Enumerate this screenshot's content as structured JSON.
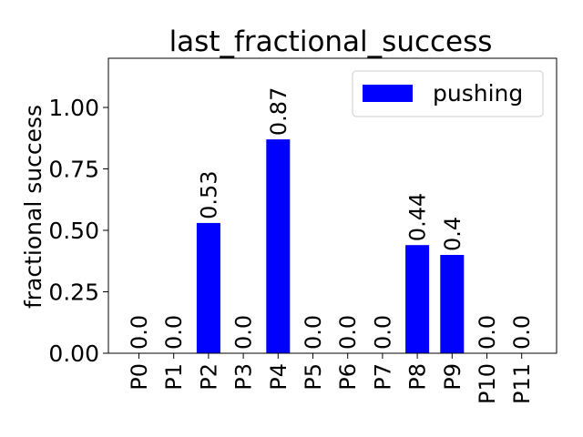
{
  "chart_data": {
    "type": "bar",
    "title": "last_fractional_success",
    "xlabel": "",
    "ylabel": "fractional success",
    "categories": [
      "P0",
      "P1",
      "P2",
      "P3",
      "P4",
      "P5",
      "P6",
      "P7",
      "P8",
      "P9",
      "P10",
      "P11"
    ],
    "series": [
      {
        "name": "pushing",
        "color": "#0000ff",
        "values": [
          0.0,
          0.0,
          0.53,
          0.0,
          0.87,
          0.0,
          0.0,
          0.0,
          0.44,
          0.4,
          0.0,
          0.0
        ],
        "labels": [
          "0.0",
          "0.0",
          "0.53",
          "0.0",
          "0.87",
          "0.0",
          "0.0",
          "0.0",
          "0.44",
          "0.4",
          "0.0",
          "0.0"
        ]
      }
    ],
    "ylim": [
      0,
      1.2
    ],
    "yticks": [
      0.0,
      0.25,
      0.5,
      0.75,
      1.0
    ],
    "ytick_labels": [
      "0.00",
      "0.25",
      "0.50",
      "0.75",
      "1.00"
    ],
    "grid": false,
    "legend": "top-right"
  }
}
